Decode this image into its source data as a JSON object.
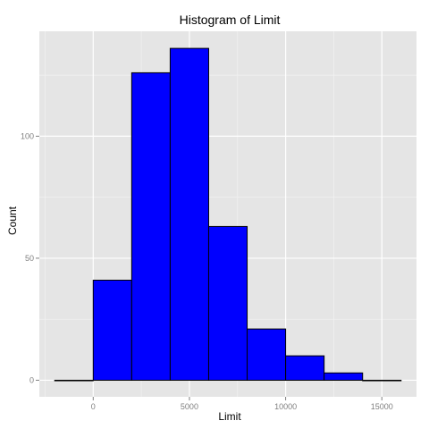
{
  "chart_data": {
    "type": "bar",
    "subtype": "histogram",
    "title": "Histogram of Limit",
    "xlabel": "Limit",
    "ylabel": "Count",
    "bin_width": 2000,
    "bins": [
      {
        "start": -2000,
        "end": 0,
        "count": 0
      },
      {
        "start": 0,
        "end": 2000,
        "count": 41
      },
      {
        "start": 2000,
        "end": 4000,
        "count": 126
      },
      {
        "start": 4000,
        "end": 6000,
        "count": 136
      },
      {
        "start": 6000,
        "end": 8000,
        "count": 63
      },
      {
        "start": 8000,
        "end": 10000,
        "count": 21
      },
      {
        "start": 10000,
        "end": 12000,
        "count": 10
      },
      {
        "start": 12000,
        "end": 14000,
        "count": 3
      },
      {
        "start": 14000,
        "end": 16000,
        "count": 0
      }
    ],
    "xlim": [
      -2800,
      16800
    ],
    "ylim": [
      -6.8,
      143
    ],
    "x_ticks": [
      0,
      5000,
      10000,
      15000
    ],
    "x_tick_labels": [
      "0",
      "5000",
      "10000",
      "15000"
    ],
    "y_ticks": [
      0,
      50,
      100
    ],
    "y_tick_labels": [
      "0",
      "50",
      "100"
    ],
    "grid": true,
    "legend": "none",
    "colors": {
      "bar_fill": "#0000ff",
      "bar_stroke": "#000000",
      "panel_background": "#e5e5e5",
      "grid_major": "#ffffff",
      "grid_minor": "#f2f2f2",
      "tick_label": "#7f7f7f"
    }
  }
}
